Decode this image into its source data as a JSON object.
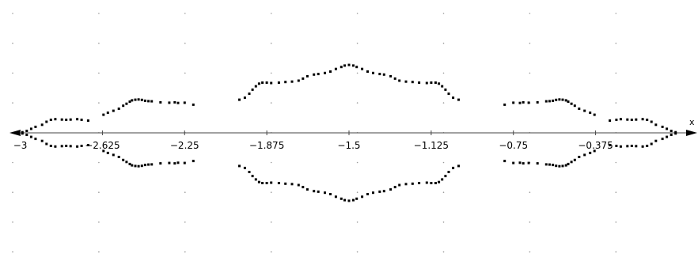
{
  "chart_data": {
    "type": "scatter",
    "x_axis": {
      "label": "x",
      "ticks": [
        -3,
        -2.625,
        -2.25,
        -1.875,
        -1.5,
        -1.125,
        -0.75,
        -0.375
      ],
      "tick_labels": [
        "−3",
        "−2.625",
        "−2.25",
        "−1.875",
        "−1.5",
        "−1.125",
        "−0.75",
        "−0.375"
      ]
    },
    "x_range": [
      -3.02,
      0.02
    ],
    "y_range": [
      -0.6,
      0.6
    ],
    "grid": "dotted",
    "y_axis_visible": false,
    "points": [
      [
        -2.99,
        0.003
      ],
      [
        -2.97,
        0.01
      ],
      [
        -2.95,
        0.02
      ],
      [
        -2.93,
        0.03
      ],
      [
        -2.9,
        0.04
      ],
      [
        -2.88,
        0.055
      ],
      [
        -2.86,
        0.065
      ],
      [
        -2.84,
        0.068
      ],
      [
        -2.81,
        0.066
      ],
      [
        -2.79,
        0.065
      ],
      [
        -2.77,
        0.066
      ],
      [
        -2.74,
        0.068
      ],
      [
        -2.72,
        0.065
      ],
      [
        -2.69,
        0.061
      ],
      [
        -2.62,
        0.09
      ],
      [
        -2.6,
        0.1
      ],
      [
        -2.575,
        0.11
      ],
      [
        -2.55,
        0.12
      ],
      [
        -2.53,
        0.135
      ],
      [
        -2.515,
        0.145
      ],
      [
        -2.5,
        0.155
      ],
      [
        -2.49,
        0.162
      ],
      [
        -2.475,
        0.165
      ],
      [
        -2.46,
        0.166
      ],
      [
        -2.445,
        0.164
      ],
      [
        -2.43,
        0.16
      ],
      [
        -2.415,
        0.158
      ],
      [
        -2.4,
        0.157
      ],
      [
        -2.36,
        0.152
      ],
      [
        -2.32,
        0.15
      ],
      [
        -2.295,
        0.152
      ],
      [
        -2.28,
        0.149
      ],
      [
        -2.25,
        0.15
      ],
      [
        -2.21,
        0.14
      ],
      [
        -2.0,
        0.165
      ],
      [
        -1.975,
        0.175
      ],
      [
        -1.955,
        0.195
      ],
      [
        -1.94,
        0.215
      ],
      [
        -1.925,
        0.232
      ],
      [
        -1.91,
        0.245
      ],
      [
        -1.895,
        0.25
      ],
      [
        -1.875,
        0.25
      ],
      [
        -1.855,
        0.248
      ],
      [
        -1.82,
        0.25
      ],
      [
        -1.79,
        0.253
      ],
      [
        -1.76,
        0.255
      ],
      [
        -1.73,
        0.26
      ],
      [
        -1.71,
        0.27
      ],
      [
        -1.69,
        0.282
      ],
      [
        -1.66,
        0.29
      ],
      [
        -1.64,
        0.293
      ],
      [
        -1.61,
        0.298
      ],
      [
        -1.585,
        0.305
      ],
      [
        -1.56,
        0.318
      ],
      [
        -1.535,
        0.328
      ],
      [
        -1.52,
        0.335
      ],
      [
        -1.5,
        0.338
      ],
      [
        -1.48,
        0.335
      ],
      [
        -1.465,
        0.328
      ],
      [
        -1.44,
        0.318
      ],
      [
        -1.415,
        0.305
      ],
      [
        -1.39,
        0.298
      ],
      [
        -1.36,
        0.293
      ],
      [
        -1.34,
        0.29
      ],
      [
        -1.31,
        0.282
      ],
      [
        -1.29,
        0.27
      ],
      [
        -1.27,
        0.26
      ],
      [
        -1.24,
        0.255
      ],
      [
        -1.21,
        0.253
      ],
      [
        -1.18,
        0.25
      ],
      [
        -1.145,
        0.248
      ],
      [
        -1.125,
        0.25
      ],
      [
        -1.105,
        0.25
      ],
      [
        -1.09,
        0.245
      ],
      [
        -1.075,
        0.232
      ],
      [
        -1.06,
        0.215
      ],
      [
        -1.045,
        0.195
      ],
      [
        -1.025,
        0.175
      ],
      [
        -1.0,
        0.165
      ],
      [
        -0.79,
        0.14
      ],
      [
        -0.75,
        0.15
      ],
      [
        -0.72,
        0.149
      ],
      [
        -0.705,
        0.152
      ],
      [
        -0.68,
        0.15
      ],
      [
        -0.64,
        0.152
      ],
      [
        -0.6,
        0.157
      ],
      [
        -0.585,
        0.158
      ],
      [
        -0.57,
        0.16
      ],
      [
        -0.555,
        0.164
      ],
      [
        -0.54,
        0.166
      ],
      [
        -0.525,
        0.165
      ],
      [
        -0.51,
        0.162
      ],
      [
        -0.5,
        0.155
      ],
      [
        -0.485,
        0.145
      ],
      [
        -0.47,
        0.135
      ],
      [
        -0.45,
        0.12
      ],
      [
        -0.425,
        0.11
      ],
      [
        -0.4,
        0.1
      ],
      [
        -0.38,
        0.09
      ],
      [
        -0.31,
        0.061
      ],
      [
        -0.28,
        0.065
      ],
      [
        -0.26,
        0.068
      ],
      [
        -0.23,
        0.066
      ],
      [
        -0.21,
        0.065
      ],
      [
        -0.19,
        0.066
      ],
      [
        -0.16,
        0.068
      ],
      [
        -0.14,
        0.065
      ],
      [
        -0.12,
        0.055
      ],
      [
        -0.1,
        0.04
      ],
      [
        -0.07,
        0.03
      ],
      [
        -0.05,
        0.02
      ],
      [
        -0.03,
        0.01
      ],
      [
        -0.01,
        0.003
      ]
    ],
    "symmetric_about_x_axis": true
  }
}
